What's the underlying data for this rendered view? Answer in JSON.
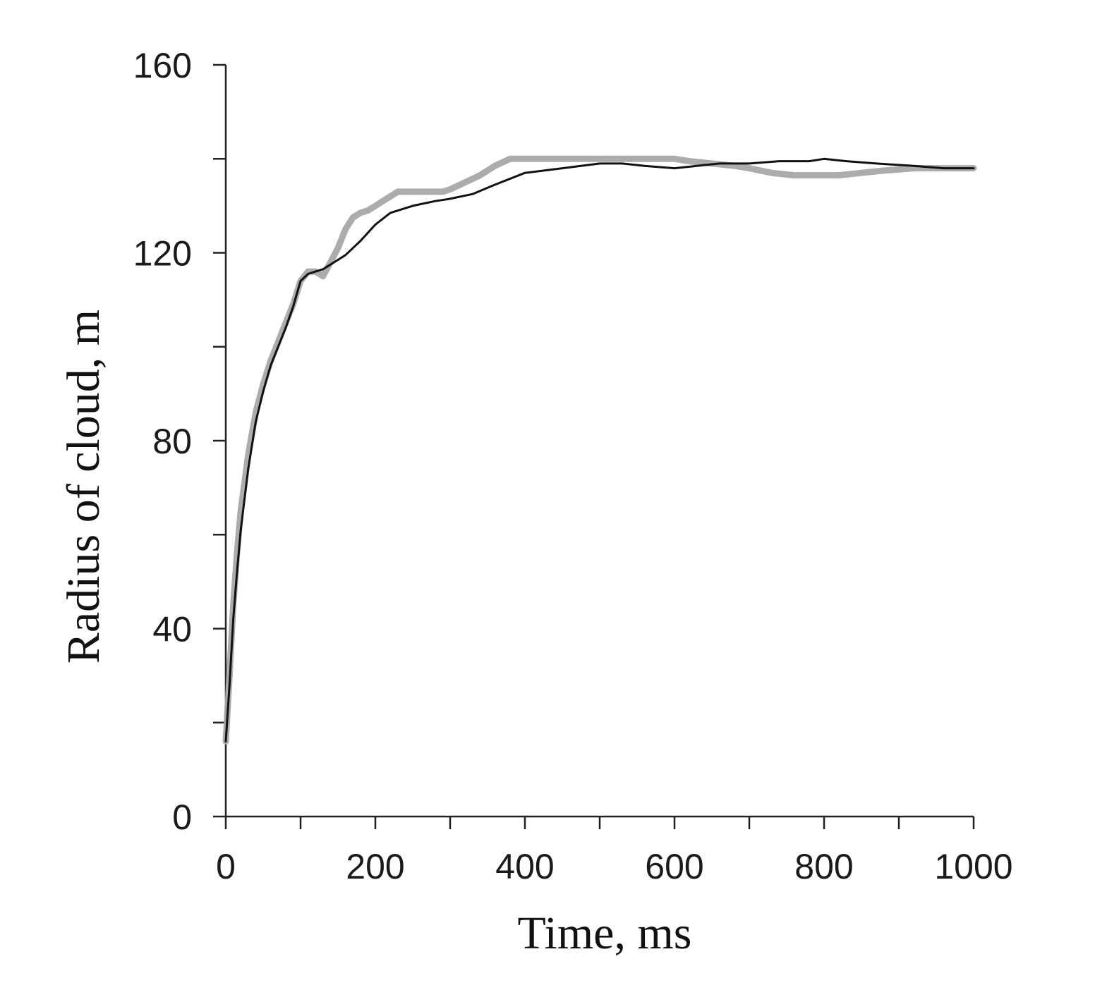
{
  "chart_data": {
    "type": "line",
    "title": "",
    "xlabel": "Time, ms",
    "ylabel": "Radius of cloud, m",
    "xlim": [
      0,
      1000
    ],
    "ylim": [
      0,
      160
    ],
    "x_ticks_major": [
      0,
      200,
      400,
      600,
      800,
      1000
    ],
    "x_ticks_minor": [
      100,
      300,
      500,
      700,
      900
    ],
    "y_ticks_major": [
      0,
      40,
      80,
      120,
      160
    ],
    "y_ticks_minor": [
      20,
      60,
      100,
      140
    ],
    "grid": false,
    "legend": "none",
    "series": [
      {
        "color": "#a8a8a8",
        "style": "thick",
        "points": [
          [
            0,
            16
          ],
          [
            5,
            30
          ],
          [
            10,
            45
          ],
          [
            15,
            56
          ],
          [
            20,
            65
          ],
          [
            30,
            77
          ],
          [
            40,
            86
          ],
          [
            50,
            92
          ],
          [
            60,
            97
          ],
          [
            70,
            101
          ],
          [
            80,
            105
          ],
          [
            90,
            109
          ],
          [
            100,
            114
          ],
          [
            110,
            116
          ],
          [
            120,
            116
          ],
          [
            130,
            115
          ],
          [
            140,
            118
          ],
          [
            150,
            121
          ],
          [
            160,
            125
          ],
          [
            170,
            127.5
          ],
          [
            180,
            128.5
          ],
          [
            190,
            129
          ],
          [
            200,
            130
          ],
          [
            210,
            131
          ],
          [
            220,
            132
          ],
          [
            230,
            133
          ],
          [
            250,
            133
          ],
          [
            270,
            133
          ],
          [
            290,
            133
          ],
          [
            300,
            133.5
          ],
          [
            320,
            135
          ],
          [
            340,
            136.5
          ],
          [
            360,
            138.5
          ],
          [
            380,
            140
          ],
          [
            400,
            140
          ],
          [
            430,
            140
          ],
          [
            460,
            140
          ],
          [
            500,
            140
          ],
          [
            530,
            140
          ],
          [
            560,
            140
          ],
          [
            600,
            140
          ],
          [
            620,
            139.5
          ],
          [
            650,
            139
          ],
          [
            680,
            138.5
          ],
          [
            700,
            138
          ],
          [
            730,
            137
          ],
          [
            760,
            136.5
          ],
          [
            790,
            136.5
          ],
          [
            820,
            136.5
          ],
          [
            850,
            137
          ],
          [
            880,
            137.5
          ],
          [
            920,
            138
          ],
          [
            960,
            138
          ],
          [
            1000,
            138
          ]
        ]
      },
      {
        "color": "#111111",
        "style": "thin",
        "points": [
          [
            0,
            16
          ],
          [
            5,
            28
          ],
          [
            10,
            42
          ],
          [
            15,
            52
          ],
          [
            20,
            61
          ],
          [
            30,
            74
          ],
          [
            40,
            84
          ],
          [
            50,
            90.5
          ],
          [
            60,
            96
          ],
          [
            70,
            100
          ],
          [
            80,
            104
          ],
          [
            90,
            108.5
          ],
          [
            100,
            114
          ],
          [
            110,
            115.5
          ],
          [
            120,
            116
          ],
          [
            130,
            116.5
          ],
          [
            140,
            117.5
          ],
          [
            150,
            118.5
          ],
          [
            160,
            119.5
          ],
          [
            180,
            122.5
          ],
          [
            200,
            126
          ],
          [
            220,
            128.5
          ],
          [
            250,
            130
          ],
          [
            280,
            131
          ],
          [
            300,
            131.5
          ],
          [
            330,
            132.5
          ],
          [
            360,
            134.5
          ],
          [
            400,
            137
          ],
          [
            450,
            138
          ],
          [
            500,
            139
          ],
          [
            530,
            139
          ],
          [
            560,
            138.5
          ],
          [
            600,
            138
          ],
          [
            630,
            138.5
          ],
          [
            660,
            139
          ],
          [
            700,
            139
          ],
          [
            740,
            139.5
          ],
          [
            780,
            139.5
          ],
          [
            800,
            140
          ],
          [
            830,
            139.5
          ],
          [
            870,
            139
          ],
          [
            920,
            138.5
          ],
          [
            960,
            138
          ],
          [
            1000,
            138
          ]
        ]
      }
    ]
  }
}
